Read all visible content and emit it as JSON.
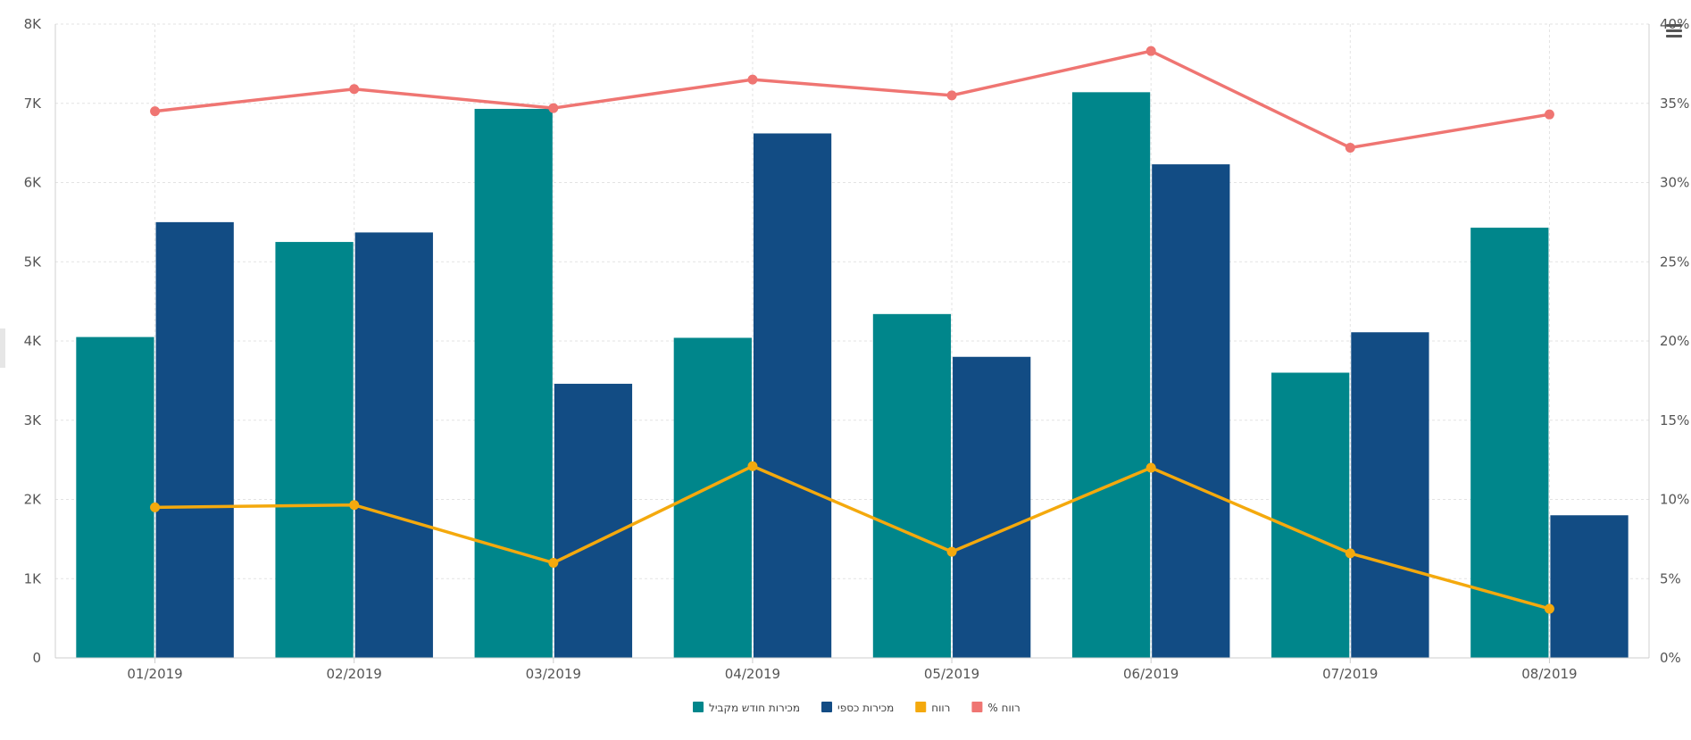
{
  "chart_data": {
    "type": "bar",
    "categories": [
      "01/2019",
      "02/2019",
      "03/2019",
      "04/2019",
      "05/2019",
      "06/2019",
      "07/2019",
      "08/2019"
    ],
    "series": [
      {
        "name": "מכירות חודש מקביל",
        "kind": "bar",
        "axis": "left",
        "color": "#00868b",
        "values": [
          4050,
          5250,
          6930,
          4040,
          4340,
          7140,
          3600,
          5430
        ]
      },
      {
        "name": "מכירות כספי",
        "kind": "bar",
        "axis": "left",
        "color": "#124c84",
        "values": [
          5500,
          5370,
          3460,
          6620,
          3800,
          6230,
          4110,
          1800
        ]
      },
      {
        "name": "רווח",
        "kind": "line",
        "axis": "left",
        "color": "#f4a90d",
        "values": [
          1900,
          1930,
          1200,
          2420,
          1340,
          2400,
          1320,
          620
        ]
      },
      {
        "name": "% רווח",
        "kind": "line",
        "axis": "right",
        "color": "#ef7572",
        "values": [
          34.5,
          35.9,
          34.7,
          36.5,
          35.5,
          38.3,
          32.2,
          34.3
        ]
      }
    ],
    "yaxis_left": {
      "ylim": [
        0,
        8000
      ],
      "ticks": [
        "0",
        "1K",
        "2K",
        "3K",
        "4K",
        "5K",
        "6K",
        "7K",
        "8K"
      ]
    },
    "yaxis_right": {
      "ylim": [
        0,
        40
      ],
      "ticks": [
        "0%",
        "5%",
        "10%",
        "15%",
        "20%",
        "25%",
        "30%",
        "35%",
        "40%"
      ]
    },
    "grid": true,
    "legend_position": "bottom-center",
    "legend_order": [
      0,
      1,
      2,
      3
    ]
  }
}
